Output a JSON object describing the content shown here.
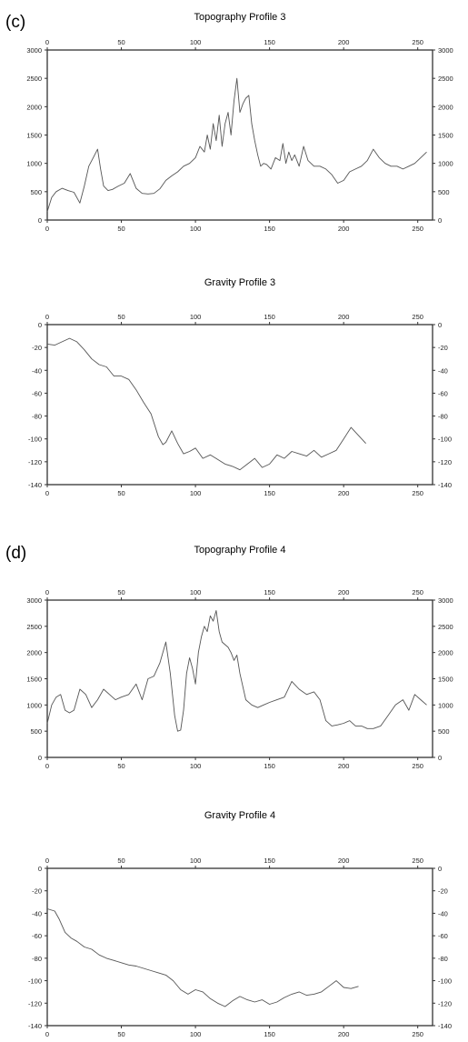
{
  "chart_data": [
    {
      "type": "line",
      "panel_label": "(c)",
      "title": "Topography Profile 3",
      "xlabel": "",
      "ylabel": "",
      "xlim": [
        0,
        260
      ],
      "ylim": [
        0,
        3000
      ],
      "xticks": [
        0,
        50,
        100,
        150,
        200,
        250
      ],
      "yticks": [
        0,
        500,
        1000,
        1500,
        2000,
        2500,
        3000
      ],
      "x": [
        0,
        3,
        6,
        10,
        14,
        18,
        22,
        25,
        28,
        31,
        34,
        36,
        38,
        41,
        44,
        48,
        52,
        56,
        60,
        64,
        68,
        72,
        76,
        80,
        84,
        88,
        92,
        96,
        100,
        103,
        106,
        108,
        110,
        112,
        114,
        116,
        118,
        120,
        122,
        124,
        126,
        128,
        130,
        132,
        134,
        136,
        138,
        140,
        142,
        144,
        146,
        148,
        151,
        154,
        157,
        159,
        161,
        163,
        165,
        167,
        170,
        173,
        176,
        180,
        184,
        188,
        192,
        196,
        200,
        204,
        208,
        212,
        216,
        220,
        224,
        228,
        232,
        236,
        240,
        244,
        248,
        252,
        256
      ],
      "y": [
        150,
        400,
        500,
        560,
        520,
        490,
        300,
        600,
        950,
        1100,
        1250,
        900,
        600,
        520,
        540,
        600,
        650,
        820,
        560,
        470,
        460,
        470,
        550,
        700,
        780,
        850,
        950,
        1000,
        1100,
        1300,
        1200,
        1500,
        1250,
        1700,
        1400,
        1850,
        1300,
        1700,
        1900,
        1500,
        2100,
        2500,
        1900,
        2050,
        2150,
        2200,
        1700,
        1400,
        1150,
        950,
        1000,
        980,
        900,
        1100,
        1050,
        1350,
        1000,
        1200,
        1050,
        1150,
        950,
        1300,
        1050,
        950,
        950,
        900,
        800,
        650,
        700,
        850,
        900,
        950,
        1050,
        1250,
        1100,
        1000,
        950,
        950,
        900,
        950,
        1000,
        1100,
        1200
      ]
    },
    {
      "type": "line",
      "title": "Gravity Profile 3",
      "xlabel": "",
      "ylabel": "",
      "xlim": [
        0,
        260
      ],
      "ylim": [
        -140,
        0
      ],
      "xticks": [
        0,
        50,
        100,
        150,
        200,
        250
      ],
      "yticks": [
        0,
        -20,
        -40,
        -60,
        -80,
        -100,
        -120,
        -140
      ],
      "x": [
        0,
        5,
        10,
        15,
        20,
        25,
        30,
        35,
        40,
        45,
        50,
        55,
        60,
        65,
        70,
        75,
        78,
        80,
        84,
        88,
        92,
        96,
        100,
        105,
        110,
        115,
        120,
        125,
        130,
        135,
        140,
        145,
        150,
        155,
        160,
        165,
        170,
        175,
        180,
        185,
        190,
        195,
        200,
        205,
        210,
        215
      ],
      "y": [
        -17,
        -18,
        -15,
        -12,
        -15,
        -22,
        -30,
        -35,
        -37,
        -45,
        -45,
        -48,
        -57,
        -68,
        -78,
        -98,
        -105,
        -103,
        -93,
        -104,
        -113,
        -111,
        -108,
        -117,
        -114,
        -118,
        -122,
        -124,
        -127,
        -122,
        -117,
        -125,
        -122,
        -114,
        -117,
        -111,
        -113,
        -115,
        -110,
        -116,
        -113,
        -110,
        -100,
        -90,
        -97,
        -104
      ]
    },
    {
      "type": "line",
      "panel_label": "(d)",
      "title": "Topography Profile 4",
      "xlabel": "",
      "ylabel": "",
      "xlim": [
        0,
        260
      ],
      "ylim": [
        0,
        3000
      ],
      "xticks": [
        0,
        50,
        100,
        150,
        200,
        250
      ],
      "yticks": [
        0,
        500,
        1000,
        1500,
        2000,
        2500,
        3000
      ],
      "x": [
        0,
        3,
        6,
        9,
        12,
        15,
        18,
        22,
        26,
        30,
        34,
        38,
        42,
        46,
        50,
        55,
        60,
        64,
        68,
        72,
        76,
        80,
        83,
        86,
        88,
        90,
        92,
        94,
        96,
        98,
        100,
        102,
        104,
        106,
        108,
        110,
        112,
        114,
        116,
        118,
        120,
        122,
        124,
        126,
        128,
        130,
        134,
        138,
        142,
        146,
        150,
        155,
        160,
        165,
        170,
        175,
        180,
        184,
        188,
        192,
        196,
        200,
        204,
        208,
        212,
        216,
        220,
        225,
        230,
        235,
        240,
        244,
        248,
        252,
        256
      ],
      "y": [
        650,
        1000,
        1150,
        1200,
        900,
        850,
        900,
        1300,
        1200,
        950,
        1100,
        1300,
        1200,
        1100,
        1150,
        1200,
        1400,
        1100,
        1500,
        1550,
        1800,
        2200,
        1600,
        800,
        500,
        520,
        900,
        1600,
        1900,
        1700,
        1400,
        2000,
        2300,
        2500,
        2400,
        2700,
        2600,
        2800,
        2400,
        2200,
        2150,
        2100,
        2000,
        1850,
        1950,
        1600,
        1100,
        1000,
        950,
        1000,
        1050,
        1100,
        1150,
        1450,
        1300,
        1200,
        1250,
        1100,
        700,
        600,
        620,
        650,
        700,
        600,
        600,
        550,
        550,
        600,
        800,
        1000,
        1100,
        900,
        1200,
        1100,
        1000
      ]
    },
    {
      "type": "line",
      "title": "Gravity Profile 4",
      "xlabel": "",
      "ylabel": "",
      "xlim": [
        0,
        260
      ],
      "ylim": [
        -140,
        0
      ],
      "xticks": [
        0,
        50,
        100,
        150,
        200,
        250
      ],
      "yticks": [
        0,
        -20,
        -40,
        -60,
        -80,
        -100,
        -120,
        -140
      ],
      "x": [
        0,
        5,
        8,
        12,
        16,
        20,
        25,
        30,
        35,
        40,
        45,
        50,
        55,
        60,
        65,
        70,
        75,
        80,
        85,
        90,
        95,
        100,
        105,
        110,
        115,
        120,
        125,
        130,
        135,
        140,
        145,
        150,
        155,
        160,
        165,
        170,
        175,
        180,
        185,
        190,
        195,
        200,
        205,
        210
      ],
      "y": [
        -36,
        -38,
        -45,
        -57,
        -62,
        -65,
        -70,
        -72,
        -77,
        -80,
        -82,
        -84,
        -86,
        -87,
        -89,
        -91,
        -93,
        -95,
        -100,
        -108,
        -112,
        -108,
        -110,
        -116,
        -120,
        -123,
        -118,
        -114,
        -117,
        -119,
        -117,
        -121,
        -119,
        -115,
        -112,
        -110,
        -113,
        -112,
        -110,
        -105,
        -100,
        -106,
        -107,
        -105
      ]
    }
  ]
}
